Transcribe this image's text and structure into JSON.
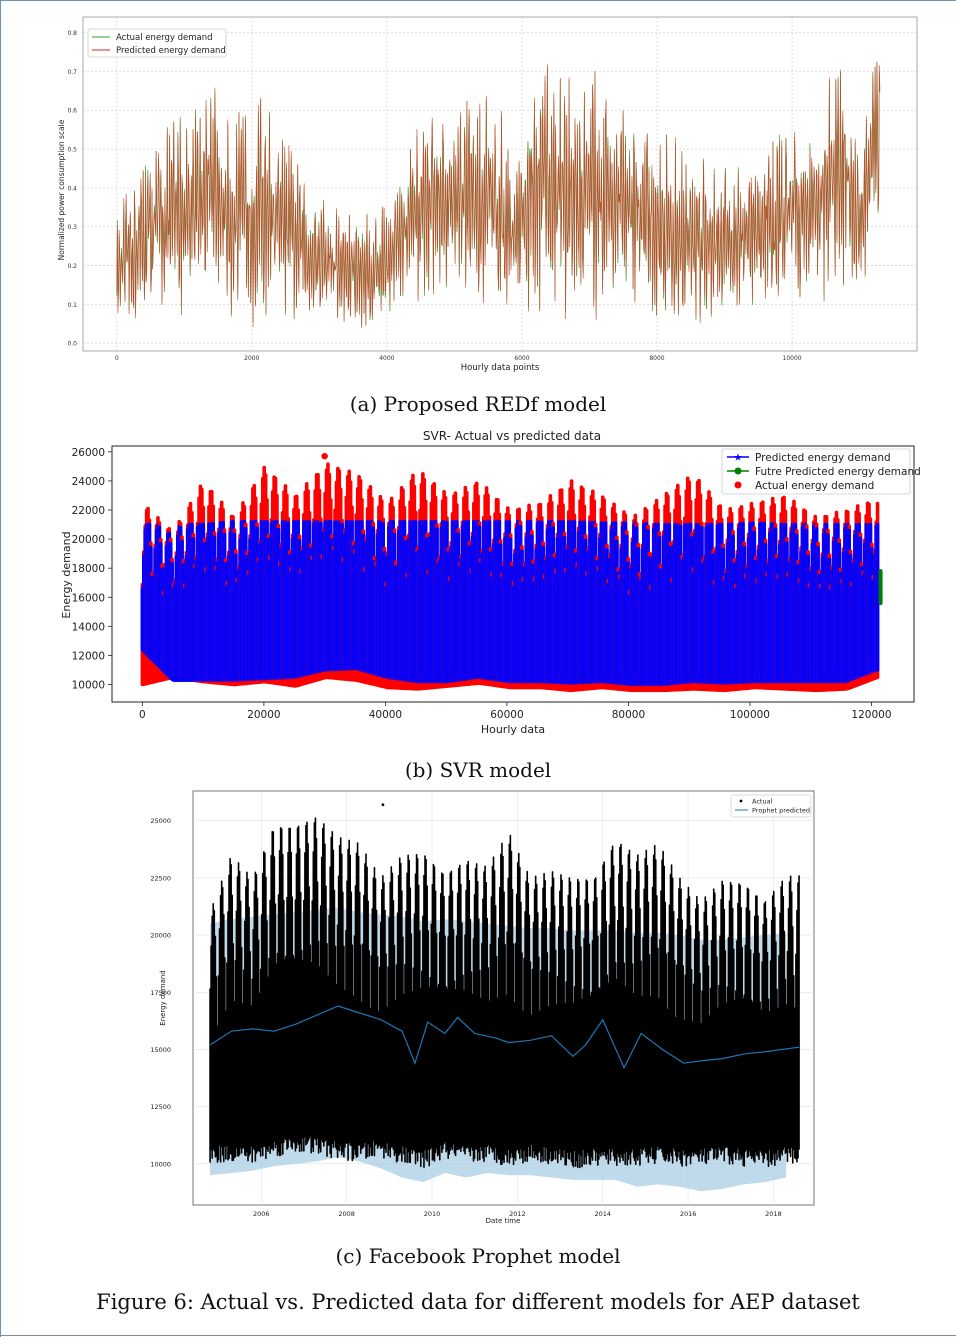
{
  "caption_a": "(a) Proposed REDf model",
  "caption_b": "(b) SVR model",
  "caption_c": "(c) Facebook Prophet model",
  "figure_caption": "Figure 6: Actual vs. Predicted data for different models for AEP dataset",
  "chart_data": [
    {
      "type": "line",
      "title": "",
      "xlabel": "Hourly data points",
      "ylabel": "Normalized power consumption scale",
      "xlim": [
        -500,
        11850
      ],
      "ylim": [
        -0.02,
        0.84
      ],
      "x_ticks": [
        0,
        2000,
        4000,
        6000,
        8000,
        10000
      ],
      "x_tick_labels": [
        "0",
        "2000",
        "4000",
        "6000",
        "8000",
        "10000"
      ],
      "y_ticks": [
        0.0,
        0.1,
        0.2,
        0.3,
        0.4,
        0.5,
        0.6,
        0.7,
        0.8
      ],
      "y_tick_labels": [
        "0.0",
        "0.1",
        "0.2",
        "0.3",
        "0.4",
        "0.5",
        "0.6",
        "0.7",
        "0.8"
      ],
      "grid": true,
      "legend": "top-left",
      "series": [
        {
          "name": "Actual energy demand",
          "color": "#2ca02c"
        },
        {
          "name": "Predicted energy demand",
          "color": "#d62728"
        }
      ],
      "x_env": [
        0,
        500,
        1000,
        1300,
        1700,
        2200,
        2800,
        3300,
        3800,
        4200,
        4600,
        5100,
        5500,
        5900,
        6300,
        6800,
        7200,
        7600,
        8000,
        8400,
        8800,
        9300,
        9800,
        10300,
        10800,
        11000,
        11300
      ],
      "upper": [
        0.32,
        0.55,
        0.62,
        0.74,
        0.58,
        0.66,
        0.44,
        0.36,
        0.33,
        0.46,
        0.6,
        0.62,
        0.66,
        0.52,
        0.74,
        0.72,
        0.7,
        0.62,
        0.58,
        0.5,
        0.5,
        0.46,
        0.56,
        0.6,
        0.78,
        0.5,
        0.82
      ],
      "lower": [
        0.03,
        0.05,
        0.06,
        0.08,
        0.06,
        0.05,
        0.04,
        0.03,
        0.03,
        0.08,
        0.12,
        0.1,
        0.08,
        0.08,
        0.06,
        0.05,
        0.07,
        0.05,
        0.02,
        0.03,
        0.05,
        0.07,
        0.08,
        0.1,
        0.12,
        0.1,
        0.3
      ]
    },
    {
      "type": "scatter",
      "title": "SVR- Actual vs predicted data",
      "xlabel": "Hourly data",
      "ylabel": "Energy demand",
      "xlim": [
        -5000,
        127000
      ],
      "ylim": [
        8800,
        26400
      ],
      "x_ticks": [
        0,
        20000,
        40000,
        60000,
        80000,
        100000,
        120000
      ],
      "x_tick_labels": [
        "0",
        "20000",
        "40000",
        "60000",
        "80000",
        "100000",
        "120000"
      ],
      "y_ticks": [
        10000,
        12000,
        14000,
        16000,
        18000,
        20000,
        22000,
        24000,
        26000
      ],
      "y_tick_labels": [
        "10000",
        "12000",
        "14000",
        "16000",
        "18000",
        "20000",
        "22000",
        "24000",
        "26000"
      ],
      "grid": false,
      "legend": "top-right",
      "series": [
        {
          "name": "Predicted energy demand",
          "color": "#0000ff",
          "marker": "star"
        },
        {
          "name": "Futre Predicted energy demand",
          "color": "#008000",
          "marker": "circle"
        },
        {
          "name": "Actual energy demand",
          "color": "#ff0000",
          "marker": "circle"
        }
      ],
      "actual_max": [
        22500,
        20500,
        24000,
        21500,
        25000,
        23000,
        25200,
        24500,
        22500,
        24800,
        23000,
        24000,
        22000,
        22500,
        24000,
        23000,
        21500,
        23000,
        24500,
        22000,
        22500,
        23000,
        21500,
        22000,
        22800
      ],
      "actual_min": [
        10000,
        10500,
        10200,
        10000,
        10200,
        9900,
        10500,
        10300,
        9800,
        9700,
        9900,
        10100,
        9800,
        9800,
        9600,
        9800,
        9600,
        9600,
        9700,
        9600,
        9800,
        9700,
        9600,
        9700,
        10500
      ],
      "predicted_max": [
        21000,
        21000,
        21000,
        21200,
        21200,
        21200,
        21200,
        21200,
        21200,
        21200,
        21200,
        21200,
        21200,
        21200,
        21200,
        21100,
        21100,
        21000,
        21000,
        21000,
        21100,
        21000,
        21000,
        21000,
        21000
      ],
      "predicted_min": [
        12400,
        10300,
        10300,
        10300,
        10400,
        10500,
        11000,
        11100,
        10500,
        10200,
        10200,
        10500,
        10200,
        10200,
        10100,
        10200,
        10000,
        10000,
        10200,
        10100,
        10200,
        10200,
        10200,
        10200,
        11000
      ],
      "outlier": [
        30000,
        25700
      ],
      "future_x": 121500,
      "future_range": [
        15600,
        17800
      ]
    },
    {
      "type": "scatter",
      "title": "",
      "xlabel": "Date time",
      "ylabel": "Energy demand",
      "xlim": [
        2004.4,
        2018.95
      ],
      "ylim": [
        8200,
        26300
      ],
      "x_ticks": [
        2006,
        2008,
        2010,
        2012,
        2014,
        2016,
        2018
      ],
      "x_tick_labels": [
        "2006",
        "2008",
        "2010",
        "2012",
        "2014",
        "2016",
        "2018"
      ],
      "y_ticks": [
        10000,
        12500,
        15000,
        17500,
        20000,
        22500,
        25000
      ],
      "y_tick_labels": [
        "10000",
        "12500",
        "15000",
        "17500",
        "20000",
        "22500",
        "25000"
      ],
      "grid": true,
      "legend": "top-right",
      "series": [
        {
          "name": "Actual",
          "color": "#000000",
          "marker": "dot"
        },
        {
          "name": "Prophet predicted",
          "color": "#1f77b4",
          "marker": "line"
        }
      ],
      "band_color": "#a9cde3",
      "trend_x": [
        2004.8,
        2005.3,
        2005.8,
        2006.3,
        2006.8,
        2007.3,
        2007.8,
        2008.3,
        2008.8,
        2009.3,
        2009.6,
        2009.9,
        2010.3,
        2010.6,
        2011.0,
        2011.5,
        2011.8,
        2012.3,
        2012.8,
        2013.3,
        2013.6,
        2014.0,
        2014.5,
        2014.9,
        2015.4,
        2015.9,
        2016.3,
        2016.8,
        2017.3,
        2017.8,
        2018.6
      ],
      "trend_y": [
        15200,
        15800,
        15900,
        15800,
        16100,
        16500,
        16900,
        16600,
        16300,
        15800,
        14400,
        16200,
        15700,
        16400,
        15700,
        15500,
        15300,
        15400,
        15600,
        14700,
        15200,
        16300,
        14200,
        15700,
        15000,
        14400,
        14500,
        14600,
        14800,
        14900,
        15100
      ],
      "actual_max_year": [
        2004.8,
        2005.3,
        2005.8,
        2006.3,
        2006.8,
        2007.3,
        2007.8,
        2008.3,
        2008.8,
        2009.3,
        2009.8,
        2010.3,
        2010.8,
        2011.3,
        2011.8,
        2012.3,
        2012.8,
        2013.3,
        2013.8,
        2014.3,
        2014.8,
        2015.3,
        2015.8,
        2016.3,
        2016.8,
        2017.3,
        2017.8,
        2018.3
      ],
      "actual_max": [
        21000,
        23500,
        22500,
        24800,
        24800,
        25200,
        24300,
        24000,
        22500,
        23500,
        23600,
        22700,
        23300,
        23000,
        24500,
        22500,
        22800,
        22500,
        22500,
        24200,
        23500,
        24000,
        22500,
        21500,
        22400,
        22300,
        21500,
        22600
      ],
      "actual_min": [
        10000,
        10100,
        10000,
        10300,
        10500,
        10400,
        10200,
        10100,
        10300,
        10000,
        9800,
        10200,
        10000,
        10100,
        9900,
        10100,
        10000,
        9800,
        9900,
        9900,
        9900,
        10000,
        9900,
        9900,
        10000,
        9900,
        9800,
        10000
      ],
      "band_upper": [
        20500,
        20700,
        20800,
        20900,
        21000,
        21100,
        21200,
        21000,
        20900,
        20800,
        20600,
        20700,
        20600,
        20500,
        20400,
        20300,
        20300,
        20200,
        20200,
        20200,
        20100,
        20100,
        20000,
        19800,
        19800,
        19900,
        20000,
        20100
      ],
      "band_lower": [
        9500,
        9600,
        9700,
        9900,
        10000,
        10100,
        10300,
        10100,
        9800,
        9400,
        9200,
        9600,
        9400,
        9600,
        9500,
        9500,
        9400,
        9300,
        9300,
        9300,
        9000,
        9100,
        9000,
        8800,
        8900,
        9100,
        9200,
        9400
      ],
      "outlier": [
        2008.85,
        25700
      ]
    }
  ]
}
